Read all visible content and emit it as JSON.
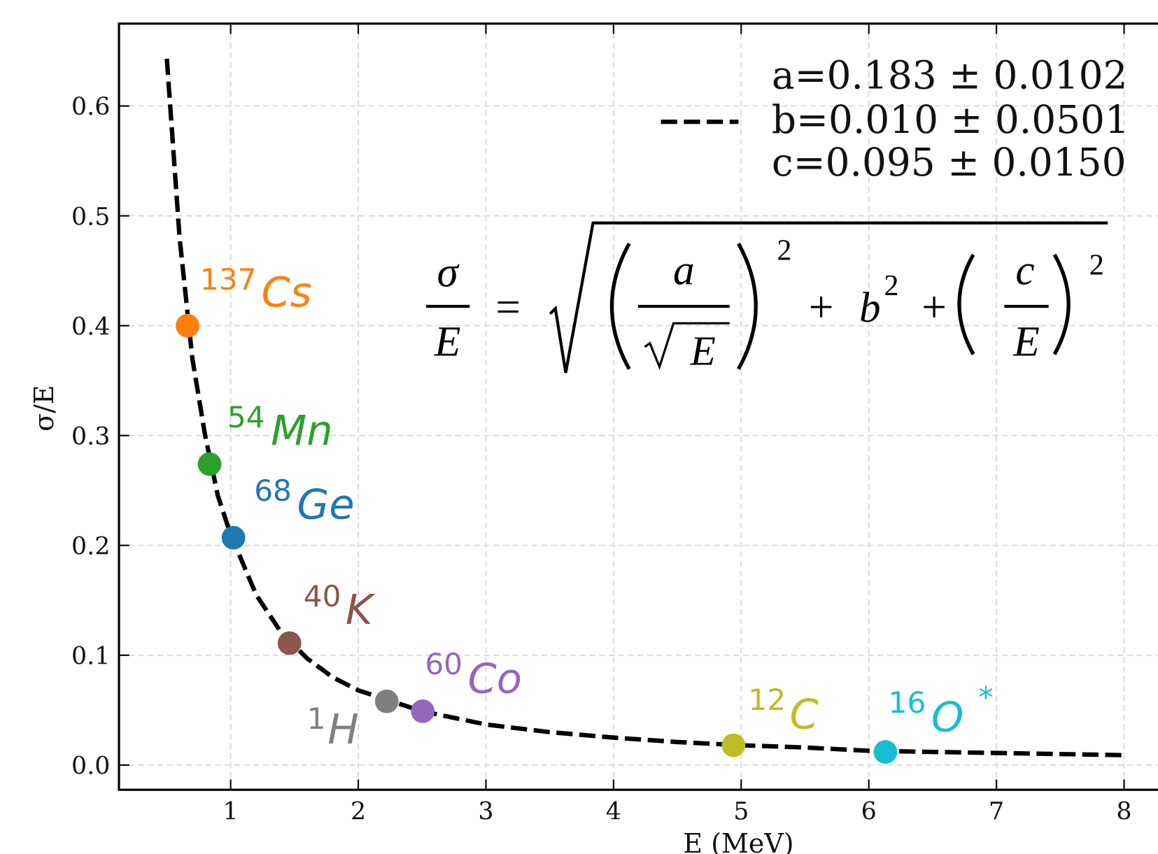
{
  "chart_data": {
    "type": "line",
    "xlabel": "E (MeV)",
    "ylabel": "σ/E",
    "xlim": [
      0.125,
      8.375
    ],
    "ylim": [
      -0.0225,
      0.675
    ],
    "xticks": [
      1,
      2,
      3,
      4,
      5,
      6,
      7,
      8
    ],
    "yticks": [
      {
        "value": 0,
        "label": "0.0"
      },
      0.1,
      0.2,
      0.3,
      0.4,
      0.5,
      0.6
    ],
    "grid": true,
    "fit": {
      "color": "#000000",
      "x": [
        0.5,
        0.6,
        0.7,
        0.8,
        0.9,
        1.0,
        1.2,
        1.4,
        1.6,
        1.8,
        2.0,
        2.5,
        3.0,
        3.5,
        4.0,
        4.5,
        5.0,
        5.5,
        6.0,
        6.5,
        7.0,
        7.5,
        8.0
      ],
      "values": [
        0.643,
        0.48,
        0.37,
        0.3,
        0.245,
        0.21,
        0.155,
        0.12,
        0.097,
        0.08,
        0.068,
        0.049,
        0.037,
        0.03,
        0.025,
        0.021,
        0.018,
        0.016,
        0.013,
        0.012,
        0.011,
        0.01,
        0.009
      ],
      "legend": [
        "a=0.183 ± 0.0102",
        "b=0.010 ± 0.0501",
        "c=0.095 ± 0.0150"
      ]
    },
    "points": [
      {
        "mass": "137",
        "symbol": "Cs",
        "x": 0.662,
        "y": 0.4,
        "color": "#ff7f0e"
      },
      {
        "mass": "54",
        "symbol": "Mn",
        "x": 0.835,
        "y": 0.274,
        "color": "#2ca02c"
      },
      {
        "mass": "68",
        "symbol": "Ge",
        "x": 1.022,
        "y": 0.207,
        "color": "#1f77b4"
      },
      {
        "mass": "40",
        "symbol": "K",
        "x": 1.461,
        "y": 0.111,
        "color": "#8c564b"
      },
      {
        "mass": "1",
        "symbol": "H",
        "x": 2.223,
        "y": 0.058,
        "color": "#7f7f7f"
      },
      {
        "mass": "60",
        "symbol": "Co",
        "x": 2.505,
        "y": 0.049,
        "color": "#9467bd"
      },
      {
        "mass": "12",
        "symbol": "C",
        "x": 4.94,
        "y": 0.018,
        "color": "#bcbd22"
      },
      {
        "mass": "16",
        "symbol": "O",
        "suffix": "*",
        "x": 6.13,
        "y": 0.012,
        "color": "#17becf"
      }
    ],
    "formula": {
      "lhs_num": "σ",
      "lhs_den": "E",
      "eq": "=",
      "a": "a",
      "sqrt_arg": "E",
      "exp1": "2",
      "plus1": "+",
      "b": "b",
      "b_exp": "2",
      "plus2": "+",
      "c": "c",
      "c_den": "E",
      "exp2": "2"
    }
  }
}
